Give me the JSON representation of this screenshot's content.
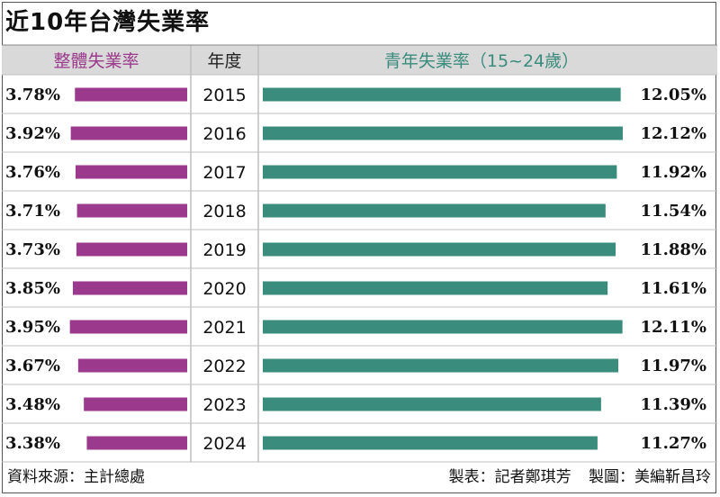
{
  "title": "近10年台灣失業率",
  "footer": {
    "source": "資料來源：主計總處",
    "reporter": "製表：記者鄭琪芳",
    "designer": "製圖：美編靳昌玲"
  },
  "colors": {
    "overall": "#9b3a8c",
    "youth": "#3a8c7c",
    "header_bg": "#d9d9d9",
    "grid": "#bfbfbf"
  },
  "chart_data": {
    "type": "bar",
    "layout": "diverging-horizontal",
    "headers": {
      "left": "整體失業率",
      "center": "年度",
      "right": "青年失業率（15~24歲）"
    },
    "categories": [
      "2015",
      "2016",
      "2017",
      "2018",
      "2019",
      "2020",
      "2021",
      "2022",
      "2023",
      "2024"
    ],
    "series": [
      {
        "name": "整體失業率",
        "values": [
          3.78,
          3.92,
          3.76,
          3.71,
          3.73,
          3.85,
          3.95,
          3.67,
          3.48,
          3.38
        ],
        "labels": [
          "3.78%",
          "3.92%",
          "3.76%",
          "3.71%",
          "3.73%",
          "3.85%",
          "3.95%",
          "3.67%",
          "3.48%",
          "3.38%"
        ]
      },
      {
        "name": "青年失業率（15~24歲）",
        "values": [
          12.05,
          12.12,
          11.92,
          11.54,
          11.88,
          11.61,
          12.11,
          11.97,
          11.39,
          11.27
        ],
        "labels": [
          "12.05%",
          "12.12%",
          "11.92%",
          "11.54%",
          "11.88%",
          "11.61%",
          "12.11%",
          "11.97%",
          "11.39%",
          "11.27%"
        ]
      }
    ]
  }
}
